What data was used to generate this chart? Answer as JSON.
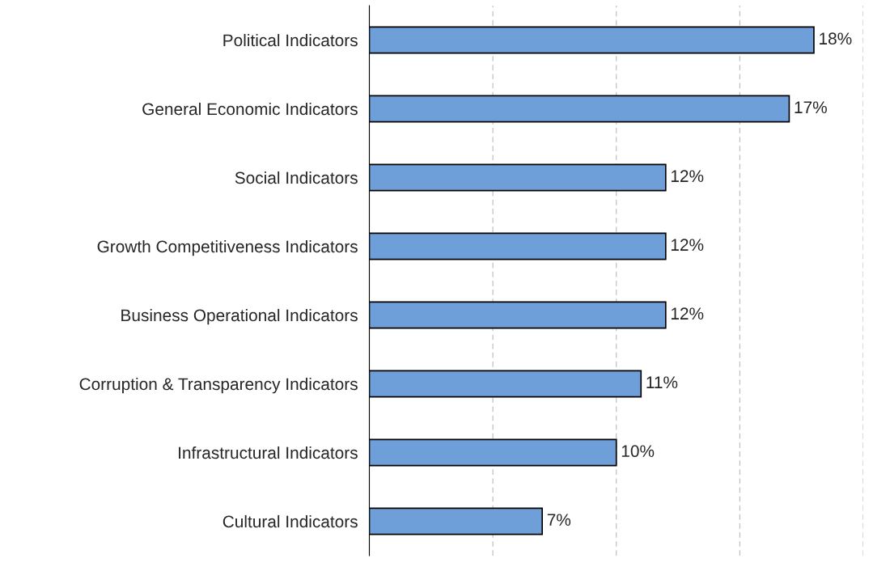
{
  "chart_data": {
    "type": "bar",
    "orientation": "horizontal",
    "categories": [
      "Political Indicators",
      "General Economic Indicators",
      "Social Indicators",
      "Growth Competitiveness Indicators",
      "Business Operational Indicators",
      "Corruption & Transparency Indicators",
      "Infrastructural Indicators",
      "Cultural Indicators"
    ],
    "values": [
      18,
      17,
      12,
      12,
      12,
      11,
      10,
      7
    ],
    "value_labels": [
      "18%",
      "17%",
      "12%",
      "12%",
      "12%",
      "11%",
      "10%",
      "7%"
    ],
    "color": "#6f9fd8",
    "xlim": [
      0,
      20
    ],
    "xticks": [
      {
        "value": 5,
        "label": null
      },
      {
        "value": 10,
        "label": null
      },
      {
        "value": 15,
        "label": null
      },
      {
        "value": 20,
        "label": null
      }
    ],
    "grid": "x",
    "tick_labels": "y"
  }
}
